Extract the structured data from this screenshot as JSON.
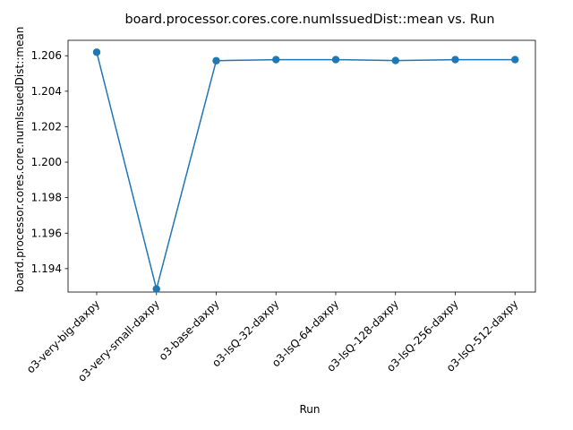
{
  "chart_data": {
    "type": "line",
    "title": "board.processor.cores.core.numIssuedDist::mean vs. Run",
    "xlabel": "Run",
    "ylabel": "board.processor.cores.core.numIssuedDist::mean",
    "categories": [
      "o3-very-big-daxpy",
      "o3-very-small-daxpy",
      "o3-base-daxpy",
      "o3-lsQ-32-daxpy",
      "o3-lsQ-64-daxpy",
      "o3-lsQ-128-daxpy",
      "o3-lsQ-256-daxpy",
      "o3-lsQ-512-daxpy"
    ],
    "series": [
      {
        "values": [
          1.2062,
          1.19285,
          1.20572,
          1.20578,
          1.20578,
          1.20573,
          1.20578,
          1.20578
        ],
        "color": "#1f77b4"
      }
    ],
    "yticks": [
      "1.194",
      "1.196",
      "1.198",
      "1.200",
      "1.202",
      "1.204",
      "1.206"
    ],
    "ylim": [
      1.19268,
      1.20687
    ],
    "grid": false,
    "legend": "none",
    "marker": "circle"
  }
}
